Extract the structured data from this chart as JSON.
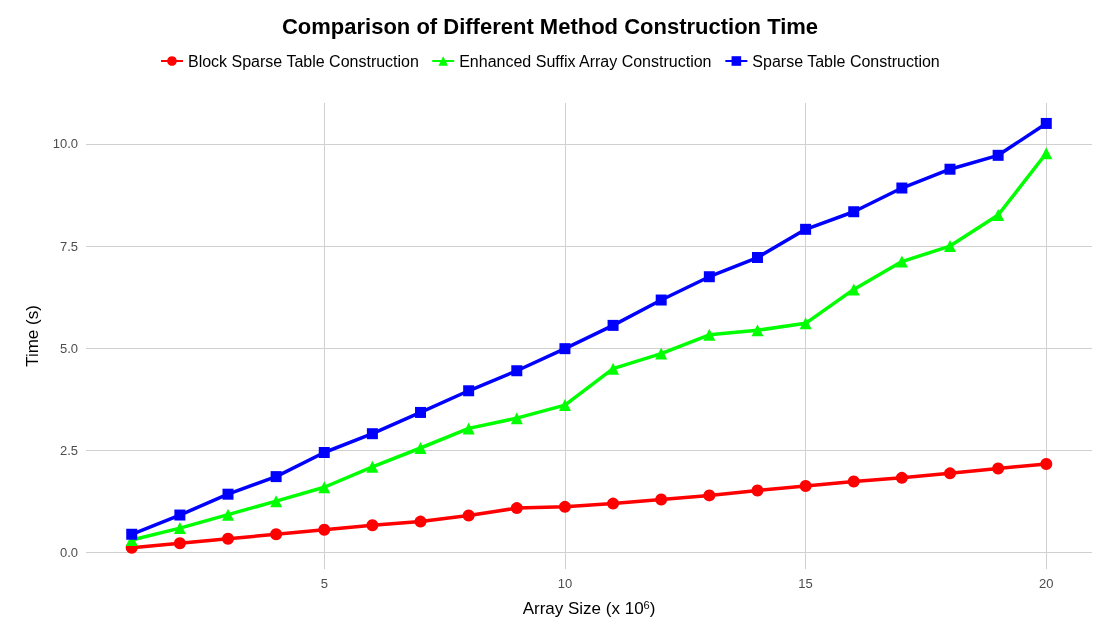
{
  "chart_data": {
    "type": "line",
    "title": "Comparison of Different Method Construction Time",
    "xlabel": "Array Size (x 10$^{6}$)",
    "ylabel": "Time (s)",
    "x": [
      1,
      2,
      3,
      4,
      5,
      6,
      7,
      8,
      9,
      10,
      11,
      12,
      13,
      14,
      15,
      16,
      17,
      18,
      19,
      20
    ],
    "series": [
      {
        "name": "Block Sparse Table Construction",
        "color": "#ff0000",
        "marker": "circle",
        "values": [
          0.12,
          0.23,
          0.34,
          0.45,
          0.56,
          0.67,
          0.76,
          0.91,
          1.09,
          1.12,
          1.2,
          1.3,
          1.4,
          1.52,
          1.63,
          1.74,
          1.83,
          1.94,
          2.06,
          2.17
        ]
      },
      {
        "name": "Enhanced Suffix Array Construction",
        "color": "#00ff00",
        "marker": "triangle",
        "values": [
          0.31,
          0.6,
          0.93,
          1.26,
          1.6,
          2.1,
          2.56,
          3.04,
          3.29,
          3.61,
          4.5,
          4.87,
          5.33,
          5.44,
          5.61,
          6.44,
          7.12,
          7.5,
          8.26,
          9.77
        ]
      },
      {
        "name": "Sparse Table Construction",
        "color": "#0000ff",
        "marker": "square",
        "values": [
          0.45,
          0.92,
          1.43,
          1.86,
          2.45,
          2.91,
          3.43,
          3.96,
          4.45,
          4.99,
          5.56,
          6.18,
          6.75,
          7.22,
          7.91,
          8.34,
          8.92,
          9.38,
          9.72,
          10.5
        ]
      }
    ],
    "xlim": [
      0.05,
      20.95
    ],
    "xticks": [
      5,
      10,
      15,
      20
    ],
    "ylim": [
      -0.4,
      11.0
    ],
    "yticks": [
      {
        "value": 0,
        "label": "0.0"
      },
      {
        "value": 2.5,
        "label": "2.5"
      },
      {
        "value": 5,
        "label": "5.0"
      },
      {
        "value": 7.5,
        "label": "7.5"
      },
      {
        "value": 10,
        "label": "10.0"
      }
    ],
    "grid": true,
    "legend": "top",
    "line_style": "solid"
  }
}
